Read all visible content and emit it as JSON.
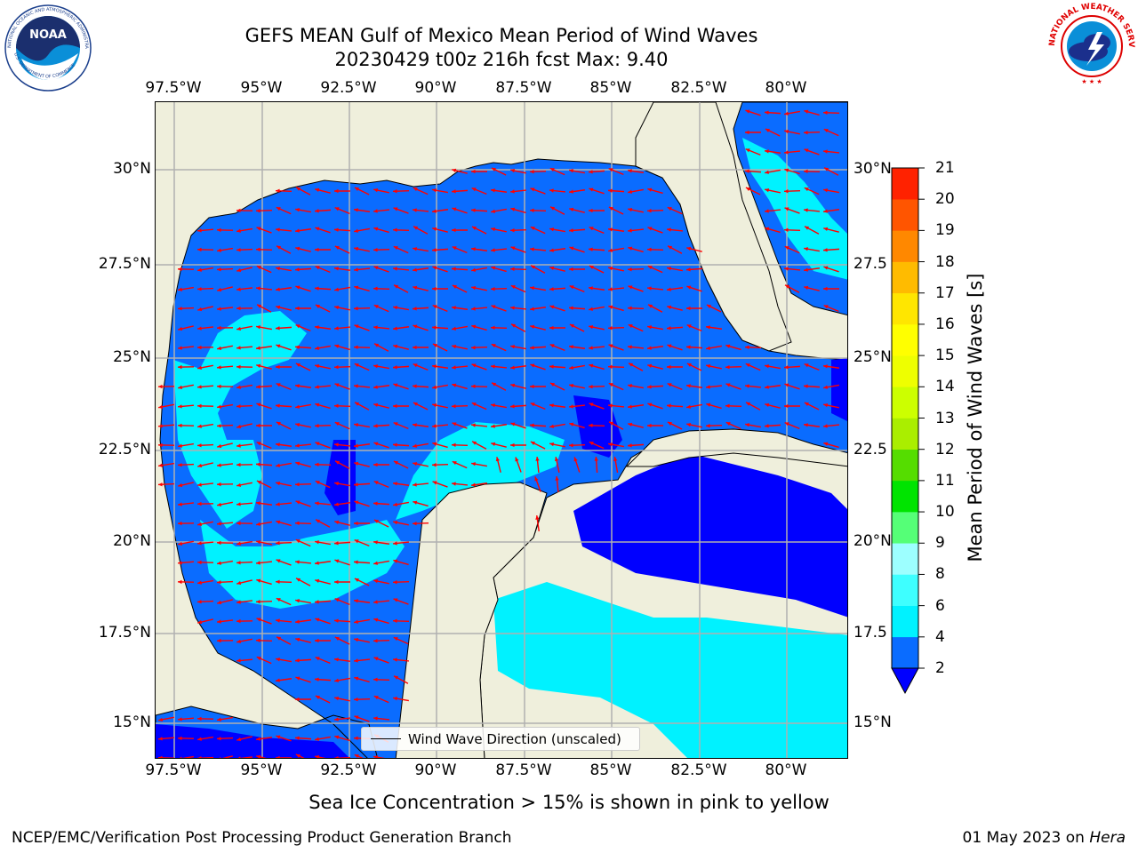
{
  "title": {
    "line1": "GEFS MEAN Gulf of Mexico Mean Period of Wind Waves",
    "line2": "20230429 t00z 216h fcst   Max: 9.40"
  },
  "axes": {
    "lon_labels": [
      "97.5°W",
      "95°W",
      "92.5°W",
      "90°W",
      "87.5°W",
      "85°W",
      "82.5°W",
      "80°W"
    ],
    "lat_labels_left": [
      "30°N",
      "27.5°N",
      "25°N",
      "22.5°N",
      "20°N",
      "17.5°N",
      "15°N"
    ],
    "lat_labels_right": [
      "30°N",
      "27.5",
      "25°N",
      "22.5",
      "20°N",
      "17.5",
      "15°N"
    ]
  },
  "colorbar": {
    "title": "Mean Period of Wind Waves [s]",
    "ticks": [
      "2",
      "4",
      "6",
      "8",
      "9",
      "10",
      "11",
      "12",
      "13",
      "14",
      "15",
      "16",
      "17",
      "18",
      "19",
      "20",
      "21"
    ],
    "colors": [
      "#0a6cff",
      "#00f2ff",
      "#3effff",
      "#9dffff",
      "#55ff77",
      "#00e400",
      "#55dd00",
      "#aaee00",
      "#ccff00",
      "#eeff00",
      "#ffff00",
      "#ffe600",
      "#ffbb00",
      "#ff8800",
      "#ff5500",
      "#ff2200"
    ],
    "under_color": "#0000ff"
  },
  "legend": {
    "label": "Wind Wave Direction (unscaled)"
  },
  "footnote": "Sea Ice Concentration > 15% is shown in pink to yellow",
  "credits": {
    "left": "NCEP/EMC/Verification Post Processing Product Generation Branch",
    "right_date": "01 May 2023 on ",
    "right_host": "Hera"
  },
  "logos": {
    "noaa": {
      "text": "NOAA",
      "ring": "NATIONAL OCEANIC AND ATMOSPHERIC ADMINISTRATION",
      "ring_bottom": "U.S. DEPARTMENT OF COMMERCE"
    },
    "nws": {
      "ring": "NATIONAL WEATHER SERVICE"
    }
  },
  "map_colors": {
    "land": "#efefdc",
    "ocean_low": "#0a6cff",
    "ocean_very_low": "#0000ff",
    "ocean_mid": "#00f2ff",
    "ocean_high": "#55ffff",
    "arrow": "#ff0000",
    "grid": "#b0b0b0"
  }
}
